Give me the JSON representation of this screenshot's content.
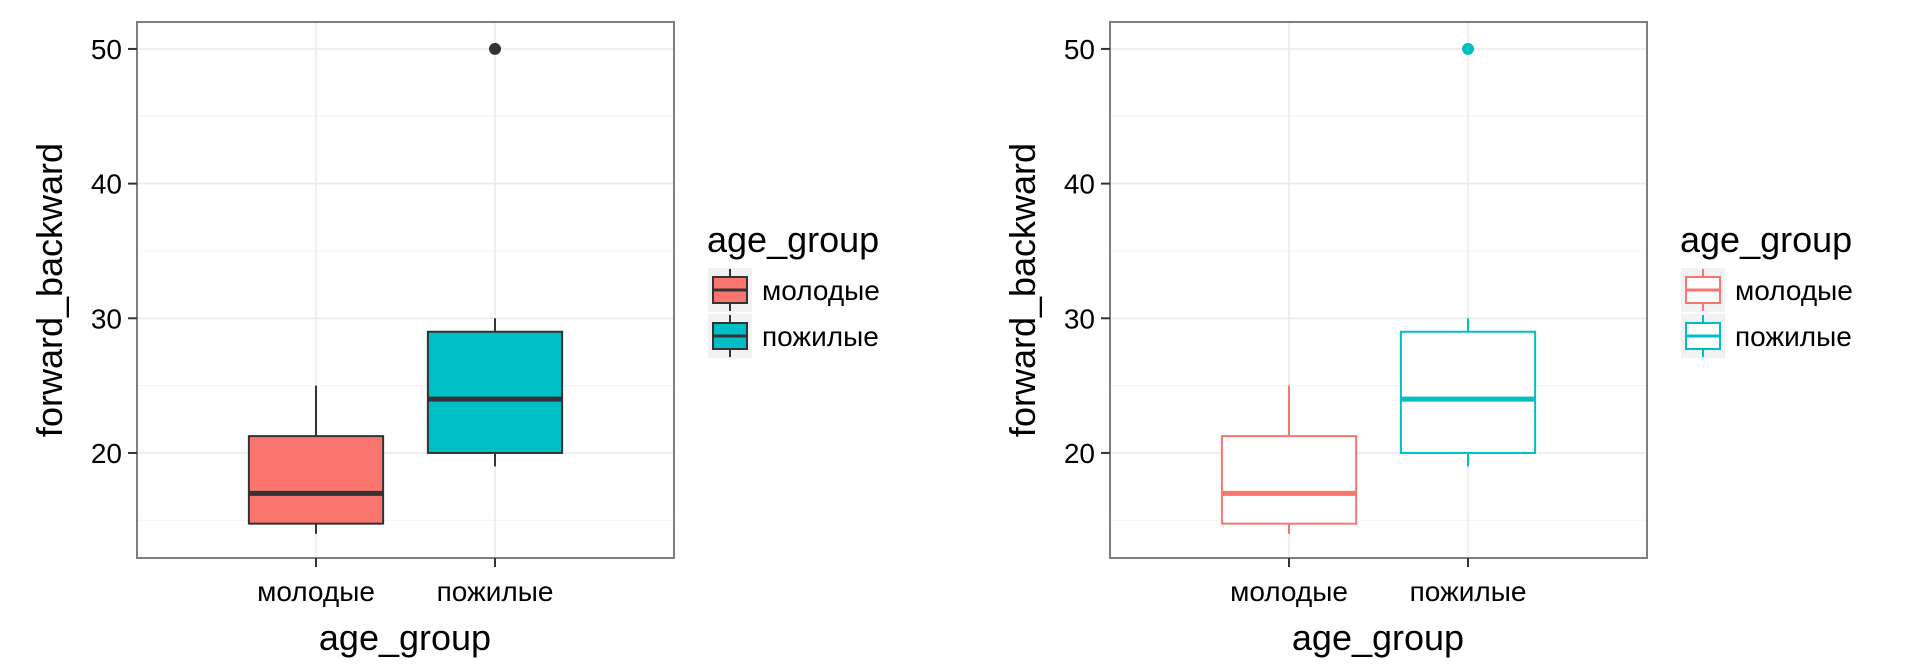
{
  "chart_data": [
    {
      "type": "boxplot",
      "variant": "fill",
      "xlabel": "age_group",
      "ylabel": "forward_backward",
      "categories": [
        "молодые",
        "пожилые"
      ],
      "colors": [
        "#F8766D",
        "#00BFC4"
      ],
      "box_line_color": "#333333",
      "ylim": [
        12.2,
        52
      ],
      "yticks": [
        20,
        30,
        40,
        50
      ],
      "grid": true,
      "legend_position": "right",
      "legend": {
        "title": "age_group",
        "entries": [
          "молодые",
          "пожилые"
        ]
      },
      "boxes": [
        {
          "category": "молодые",
          "whisker_low": 14,
          "q1": 14.75,
          "median": 17,
          "q3": 21.25,
          "whisker_high": 25,
          "outliers": []
        },
        {
          "category": "пожилые",
          "whisker_low": 19,
          "q1": 20,
          "median": 24,
          "q3": 29,
          "whisker_high": 30,
          "outliers": [
            50
          ]
        }
      ]
    },
    {
      "type": "boxplot",
      "variant": "outline",
      "xlabel": "age_group",
      "ylabel": "forward_backward",
      "categories": [
        "молодые",
        "пожилые"
      ],
      "colors": [
        "#F8766D",
        "#00BFC4"
      ],
      "ylim": [
        12.2,
        52
      ],
      "yticks": [
        20,
        30,
        40,
        50
      ],
      "grid": true,
      "legend_position": "right",
      "legend": {
        "title": "age_group",
        "entries": [
          "молодые",
          "пожилые"
        ]
      },
      "boxes": [
        {
          "category": "молодые",
          "whisker_low": 14,
          "q1": 14.75,
          "median": 17,
          "q3": 21.25,
          "whisker_high": 25,
          "outliers": []
        },
        {
          "category": "пожилые",
          "whisker_low": 19,
          "q1": 20,
          "median": 24,
          "q3": 29,
          "whisker_high": 30,
          "outliers": [
            50
          ]
        }
      ]
    }
  ]
}
